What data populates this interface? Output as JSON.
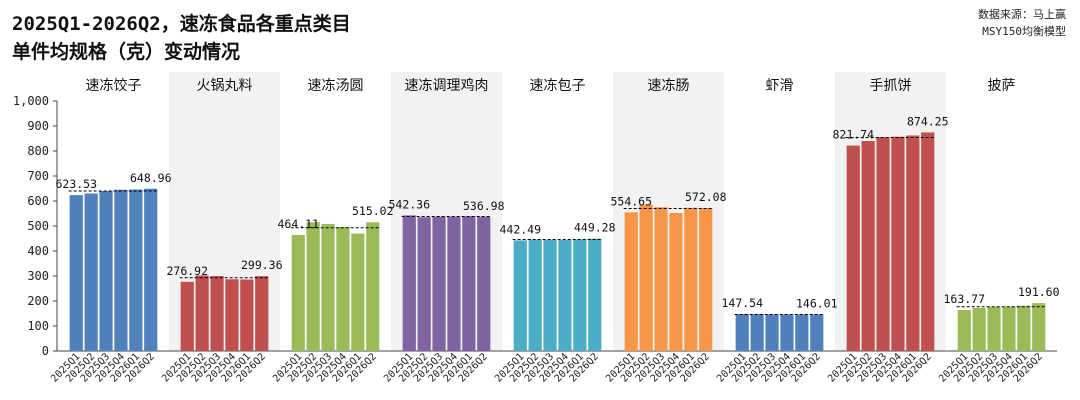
{
  "title_lines": [
    "2025Q1-2026Q2，速冻食品各重点类目",
    "单件均规格（克）变动情况"
  ],
  "source_lines": [
    "数据来源：马上赢",
    "MSY150均衡模型"
  ],
  "chart_data": {
    "type": "bar",
    "ylim": [
      0,
      1000
    ],
    "yticks": [
      "0",
      "100",
      "200",
      "300",
      "400",
      "500",
      "600",
      "700",
      "800",
      "900",
      "1,000"
    ],
    "periods": [
      "2025Q1",
      "2025Q2",
      "2025Q3",
      "2025Q4",
      "2026Q1",
      "2026Q2"
    ],
    "grid": false,
    "panels": [
      {
        "name": "速冻饺子",
        "color": "#4f81bd",
        "values": [
          623.53,
          630,
          640,
          645,
          646,
          648.96
        ],
        "first_label": "623.53",
        "last_label": "648.96",
        "ref_line": 640
      },
      {
        "name": "火锅丸料",
        "color": "#c0504d",
        "values": [
          276.92,
          302,
          300,
          287,
          286,
          299.36
        ],
        "first_label": "276.92",
        "last_label": "299.36",
        "ref_line": 293
      },
      {
        "name": "速冻汤圆",
        "color": "#9bbb59",
        "values": [
          464.11,
          515,
          508,
          496,
          470,
          515.02
        ],
        "first_label": "464.11",
        "last_label": "515.02",
        "ref_line": 493
      },
      {
        "name": "速冻调理鸡肉",
        "color": "#8064a2",
        "values": [
          542.36,
          535,
          537,
          537,
          539,
          536.98
        ],
        "first_label": "542.36",
        "last_label": "536.98",
        "ref_line": 538
      },
      {
        "name": "速冻包子",
        "color": "#4bacc6",
        "values": [
          442.49,
          446,
          445,
          444,
          446,
          449.28
        ],
        "first_label": "442.49",
        "last_label": "449.28",
        "ref_line": 446
      },
      {
        "name": "速冻肠",
        "color": "#f79646",
        "values": [
          554.65,
          585,
          575,
          552,
          573,
          572.08
        ],
        "first_label": "554.65",
        "last_label": "572.08",
        "ref_line": 570
      },
      {
        "name": "虾滑",
        "color": "#4f81bd",
        "values": [
          147.54,
          147,
          146,
          146,
          146,
          146.01
        ],
        "first_label": "147.54",
        "last_label": "146.01",
        "ref_line": 146
      },
      {
        "name": "手抓饼",
        "color": "#c0504d",
        "values": [
          821.74,
          840,
          855,
          857,
          862,
          874.25
        ],
        "first_label": "821.74",
        "last_label": "874.25",
        "ref_line": 854
      },
      {
        "name": "披萨",
        "color": "#9bbb59",
        "values": [
          163.77,
          172,
          176,
          178,
          181,
          191.6
        ],
        "first_label": "163.77",
        "last_label": "191.60",
        "ref_line": 177
      }
    ]
  }
}
